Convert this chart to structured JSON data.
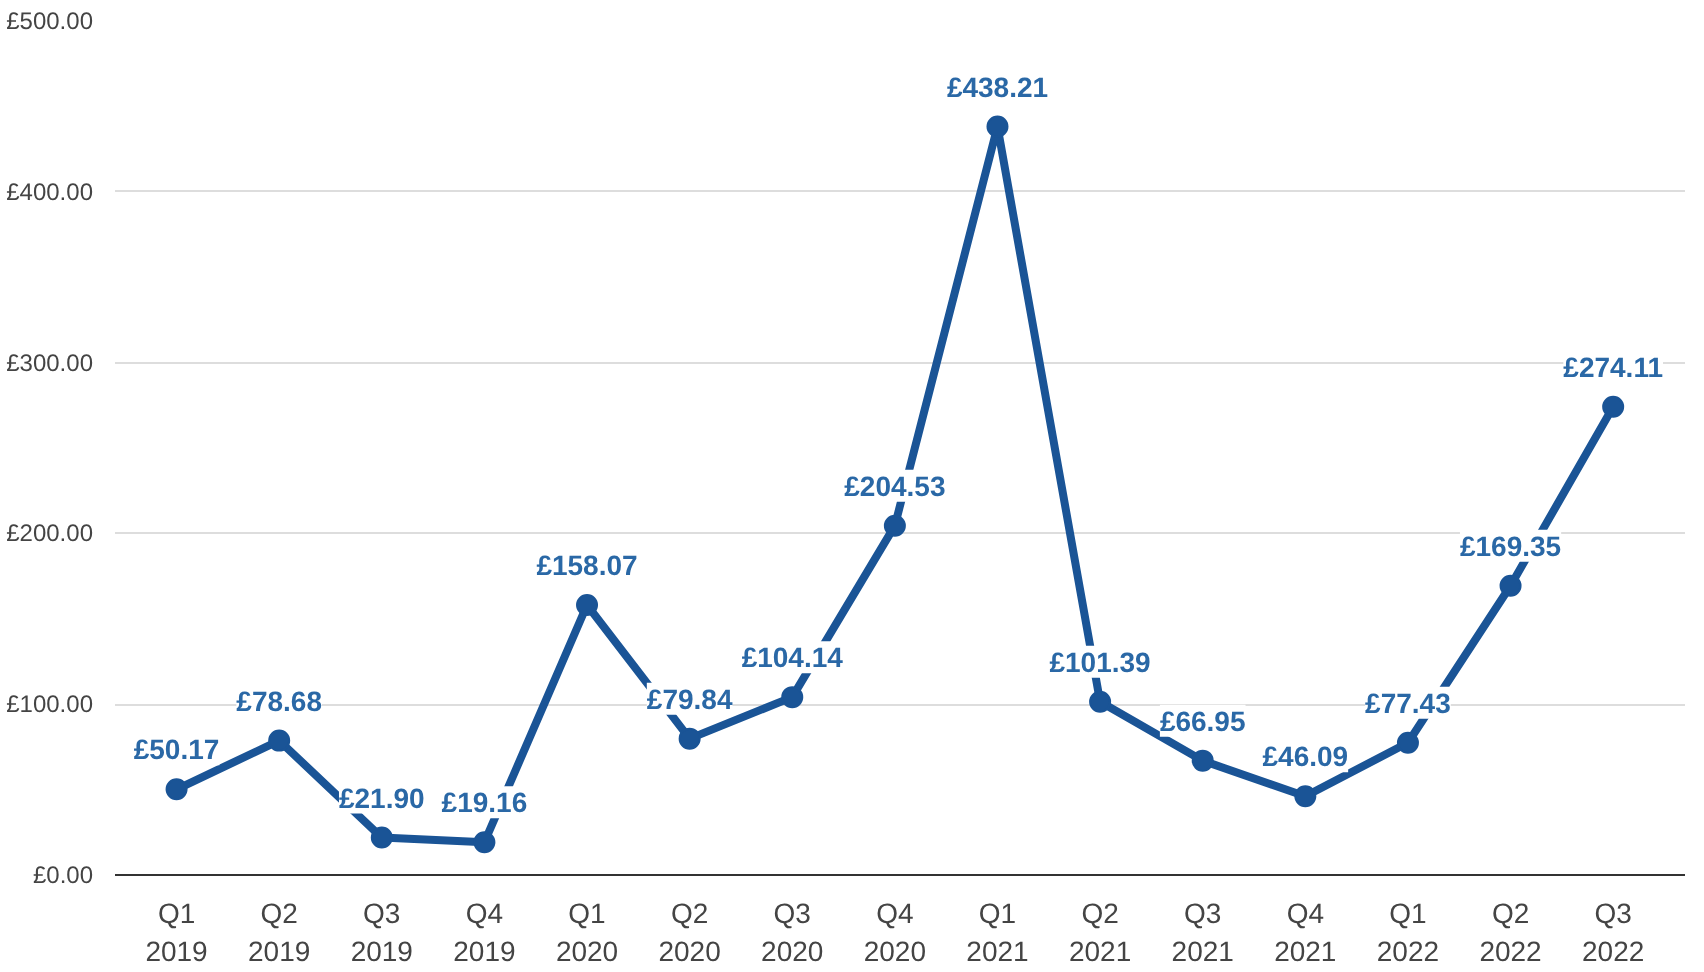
{
  "chart_data": {
    "type": "line",
    "categories": [
      "Q1\n2019",
      "Q2\n2019",
      "Q3\n2019",
      "Q4\n2019",
      "Q1\n2020",
      "Q2\n2020",
      "Q3\n2020",
      "Q4\n2020",
      "Q1\n2021",
      "Q2\n2021",
      "Q3\n2021",
      "Q4\n2021",
      "Q1\n2022",
      "Q2\n2022",
      "Q3\n2022"
    ],
    "series": [
      {
        "color": "#1a5496",
        "values": [
          50.17,
          78.68,
          21.9,
          19.16,
          158.07,
          79.84,
          104.14,
          204.53,
          438.21,
          101.39,
          66.95,
          46.09,
          77.43,
          169.35,
          274.11
        ],
        "value_labels": [
          "£50.17",
          "£78.68",
          "£21.90",
          "£19.16",
          "£158.07",
          "£79.84",
          "£104.14",
          "£204.53",
          "£438.21",
          "£101.39",
          "£66.95",
          "£46.09",
          "£77.43",
          "£169.35",
          "£274.11"
        ]
      }
    ],
    "ylim": [
      0,
      500
    ],
    "yticks": [
      {
        "value": 0,
        "label": "£0.00"
      },
      {
        "value": 100,
        "label": "£100.00"
      },
      {
        "value": 200,
        "label": "£200.00"
      },
      {
        "value": 300,
        "label": "£300.00"
      },
      {
        "value": 400,
        "label": "£400.00"
      },
      {
        "value": 500,
        "label": "£500.00"
      }
    ],
    "grid": "y",
    "marker": "circle",
    "line_style": "solid"
  }
}
